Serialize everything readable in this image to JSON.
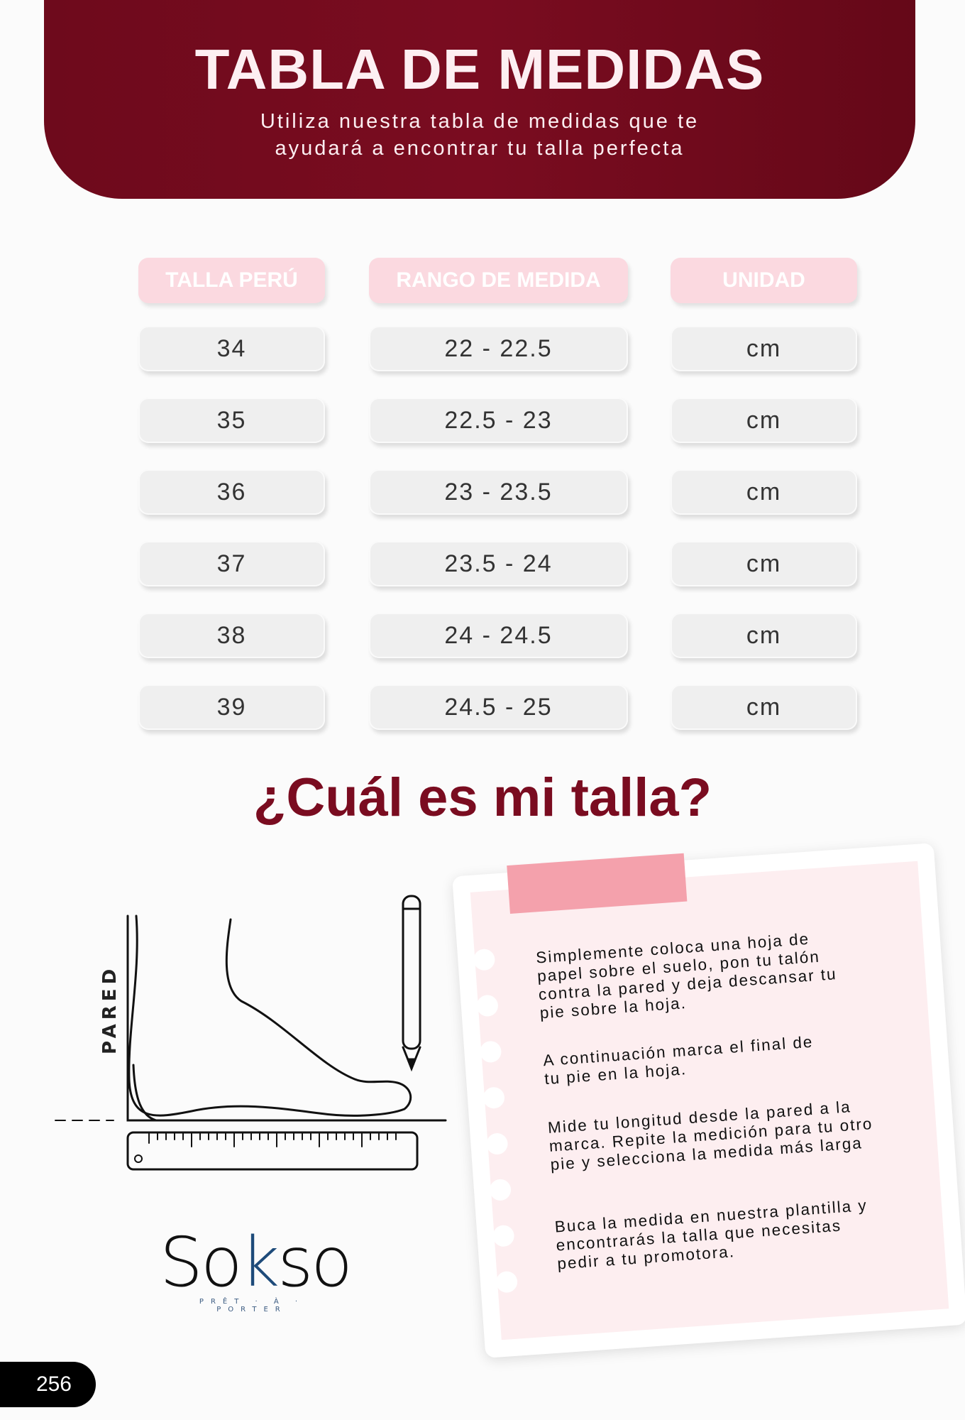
{
  "header": {
    "title": "TABLA DE MEDIDAS",
    "subtitle_line1": "Utiliza nuestra tabla de medidas que te",
    "subtitle_line2": "ayudará a encontrar tu talla perfecta"
  },
  "table": {
    "columns": [
      "TALLA PERÚ",
      "RANGO DE MEDIDA",
      "UNIDAD"
    ],
    "rows": [
      [
        "34",
        "22 - 22.5",
        "cm"
      ],
      [
        "35",
        "22.5 - 23",
        "cm"
      ],
      [
        "36",
        "23 - 23.5",
        "cm"
      ],
      [
        "37",
        "23.5 - 24",
        "cm"
      ],
      [
        "38",
        "24 - 24.5",
        "cm"
      ],
      [
        "39",
        "24.5 - 25",
        "cm"
      ]
    ]
  },
  "guide": {
    "title": "¿Cuál es mi talla?",
    "wall_label": "PARED",
    "steps": [
      "Simplemente coloca una hoja de papel sobre el suelo, pon tu talón contra la pared y deja descansar tu pie sobre la hoja.",
      "A continuación marca el final de tu pie en la hoja.",
      "Mide tu longitud desde la pared a la marca. Repite la medición para tu otro pie y selecciona la medida más larga",
      "Buca la medida en nuestra plantilla y encontrarás la talla que necesitas pedir a tu promotora."
    ]
  },
  "brand": {
    "name": "Sokso",
    "tagline": "PRÊT-À-PORTER"
  },
  "page_number": "256",
  "colors": {
    "primary": "#7a0c20",
    "header_pink": "#fbd9e0",
    "tape": "#f4a1ac",
    "note_bg": "#fdeef0"
  }
}
